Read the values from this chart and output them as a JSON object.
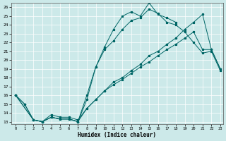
{
  "xlabel": "Humidex (Indice chaleur)",
  "bg_color": "#cce9e9",
  "line_color": "#006666",
  "xlim": [
    -0.5,
    23.3
  ],
  "ylim": [
    12.7,
    26.5
  ],
  "xticks": [
    0,
    1,
    2,
    3,
    4,
    5,
    6,
    7,
    8,
    9,
    10,
    11,
    12,
    13,
    14,
    15,
    16,
    17,
    18,
    19,
    20,
    21,
    22,
    23
  ],
  "yticks": [
    13,
    14,
    15,
    16,
    17,
    18,
    19,
    20,
    21,
    22,
    23,
    24,
    25,
    26
  ],
  "lines": [
    {
      "x": [
        0,
        1,
        2,
        3,
        4,
        5,
        6,
        7,
        8,
        9,
        10,
        11,
        12,
        13,
        14,
        15,
        16,
        17,
        18,
        19,
        20,
        21,
        22,
        23
      ],
      "y": [
        16,
        15,
        13.2,
        13,
        13.5,
        13.3,
        13.3,
        13,
        16,
        19.2,
        21.2,
        22.2,
        23.5,
        24.5,
        24.8,
        25.8,
        25.3,
        24.3,
        24.0,
        23.2,
        22.0,
        20.8,
        21.0,
        18.8
      ]
    },
    {
      "x": [
        0,
        2,
        3,
        4,
        5,
        6,
        7,
        8,
        9,
        10,
        11,
        12,
        13,
        14,
        15,
        16,
        17,
        18
      ],
      "y": [
        16,
        13.2,
        13,
        13.5,
        13.3,
        13.3,
        13,
        15.5,
        19.2,
        21.5,
        23.5,
        25.0,
        25.5,
        25.0,
        26.5,
        25.2,
        24.8,
        24.3
      ]
    },
    {
      "x": [
        0,
        1,
        2,
        3,
        4,
        5,
        6,
        7,
        8,
        9,
        10,
        11,
        12,
        13,
        14,
        15,
        16,
        17,
        18,
        19,
        20,
        21,
        22,
        23
      ],
      "y": [
        16,
        15,
        13.2,
        13,
        13.8,
        13.5,
        13.5,
        13.2,
        14.5,
        15.5,
        16.5,
        17.5,
        18.0,
        18.8,
        19.5,
        20.5,
        21.0,
        21.8,
        22.5,
        23.5,
        24.3,
        25.2,
        21.2,
        19.0
      ]
    },
    {
      "x": [
        0,
        2,
        3,
        4,
        5,
        6,
        7,
        8,
        9,
        10,
        11,
        12,
        13,
        14,
        15,
        16,
        17,
        18,
        19,
        20,
        21,
        22,
        23
      ],
      "y": [
        16,
        13.2,
        13,
        13.5,
        13.3,
        13.3,
        13,
        14.5,
        15.5,
        16.5,
        17.2,
        17.8,
        18.5,
        19.2,
        19.8,
        20.5,
        21.2,
        21.8,
        22.5,
        23.2,
        21.2,
        21.2,
        19.0
      ]
    }
  ]
}
